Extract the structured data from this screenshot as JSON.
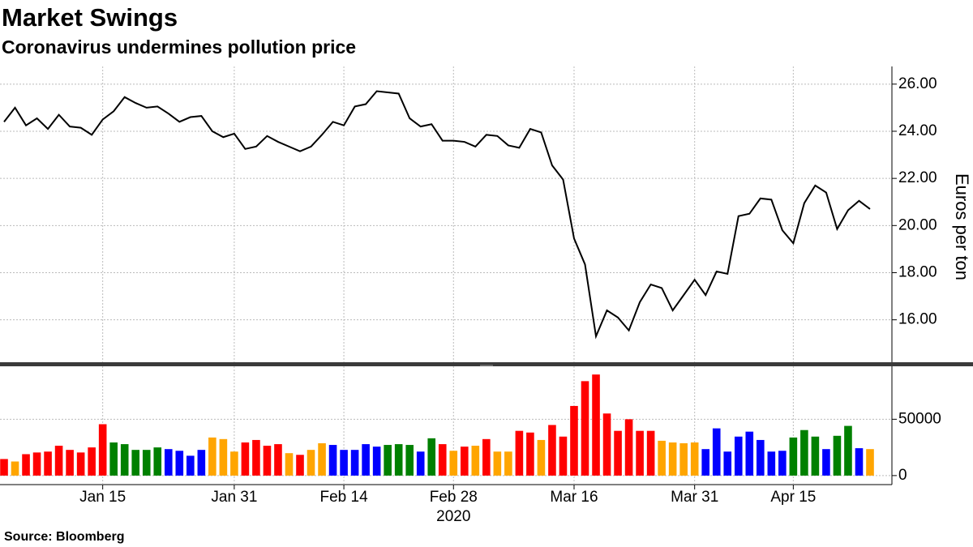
{
  "chart_data": [
    {
      "type": "line",
      "title": "Market Swings",
      "subtitle": "Coronavirus undermines pollution price",
      "ylabel": "Euros per ton",
      "x_year_label": "2020",
      "categories": [
        null,
        null,
        null,
        null,
        null,
        null,
        null,
        null,
        null,
        "Jan 15",
        null,
        null,
        null,
        null,
        null,
        null,
        null,
        null,
        null,
        null,
        null,
        "Jan 31",
        null,
        null,
        null,
        null,
        null,
        null,
        null,
        null,
        null,
        "Feb 14",
        null,
        null,
        null,
        null,
        null,
        null,
        null,
        null,
        null,
        "Feb 28",
        null,
        null,
        null,
        null,
        null,
        null,
        null,
        null,
        null,
        null,
        "Mar 16",
        null,
        null,
        null,
        null,
        null,
        null,
        null,
        null,
        null,
        null,
        "Mar 31",
        null,
        null,
        null,
        null,
        null,
        null,
        null,
        null,
        "Apr 15",
        null,
        null,
        null,
        null,
        null,
        null,
        null
      ],
      "series": [
        {
          "color": "#000000",
          "values": [
            24.4,
            25.0,
            24.25,
            24.55,
            24.1,
            24.7,
            24.2,
            24.15,
            23.85,
            24.5,
            24.85,
            25.45,
            25.2,
            25.0,
            25.05,
            24.75,
            24.4,
            24.6,
            24.65,
            24.0,
            23.75,
            23.9,
            23.25,
            23.35,
            23.8,
            23.55,
            23.35,
            23.15,
            23.35,
            23.85,
            24.4,
            24.25,
            25.05,
            25.15,
            25.7,
            25.65,
            25.6,
            24.55,
            24.2,
            24.3,
            23.6,
            23.6,
            23.55,
            23.35,
            23.85,
            23.8,
            23.4,
            23.3,
            24.1,
            23.95,
            22.55,
            21.95,
            19.45,
            18.35,
            15.3,
            16.4,
            16.1,
            15.55,
            16.75,
            17.5,
            17.35,
            16.4,
            17.05,
            17.7,
            17.05,
            18.05,
            17.95,
            20.4,
            20.5,
            21.15,
            21.1,
            19.8,
            19.25,
            20.95,
            21.7,
            21.4,
            19.85,
            20.65,
            21.05,
            20.7
          ]
        }
      ],
      "ylim": [
        14.2,
        26.75
      ],
      "yticks": [
        {
          "value": 16,
          "label": "16.00"
        },
        {
          "value": 18,
          "label": "18.00"
        },
        {
          "value": 20,
          "label": "20.00"
        },
        {
          "value": 22,
          "label": "22.00"
        },
        {
          "value": 24,
          "label": "24.00"
        },
        {
          "value": 26,
          "label": "26.00"
        }
      ],
      "grid": true
    },
    {
      "type": "bar",
      "values": [
        14700,
        12500,
        19000,
        20500,
        21300,
        26500,
        22800,
        20500,
        25000,
        45600,
        29400,
        27900,
        22800,
        22800,
        25000,
        23500,
        22000,
        17600,
        22800,
        33800,
        32400,
        21300,
        29400,
        31600,
        26500,
        27900,
        19900,
        18400,
        22800,
        28700,
        27200,
        22800,
        22800,
        27900,
        25700,
        27200,
        27900,
        27200,
        21300,
        33100,
        27900,
        22000,
        25700,
        26500,
        32400,
        21300,
        21300,
        39700,
        38200,
        31600,
        44900,
        34600,
        61800,
        83800,
        89700,
        55100,
        39700,
        50000,
        39700,
        39700,
        30900,
        29400,
        28700,
        29400,
        23500,
        41900,
        21300,
        34600,
        39000,
        31600,
        21300,
        22000,
        33800,
        40400,
        34600,
        23500,
        35300,
        44100,
        24300,
        23500
      ],
      "colors": [
        "#ff0000",
        "#ffa500",
        "#ff0000",
        "#ff0000",
        "#ff0000",
        "#ff0000",
        "#ff0000",
        "#ff0000",
        "#ff0000",
        "#ff0000",
        "#008000",
        "#008000",
        "#008000",
        "#008000",
        "#008000",
        "#0000ff",
        "#0000ff",
        "#0000ff",
        "#0000ff",
        "#ffa500",
        "#ffa500",
        "#ffa500",
        "#ff0000",
        "#ff0000",
        "#ff0000",
        "#ff0000",
        "#ffa500",
        "#ff0000",
        "#ffa500",
        "#ffa500",
        "#0000ff",
        "#0000ff",
        "#0000ff",
        "#0000ff",
        "#0000ff",
        "#008000",
        "#008000",
        "#008000",
        "#0000ff",
        "#008000",
        "#ff0000",
        "#ffa500",
        "#ff0000",
        "#ffa500",
        "#ff0000",
        "#ffa500",
        "#ffa500",
        "#ff0000",
        "#ff0000",
        "#ffa500",
        "#ff0000",
        "#ff0000",
        "#ff0000",
        "#ff0000",
        "#ff0000",
        "#ff0000",
        "#ff0000",
        "#ff0000",
        "#ff0000",
        "#ff0000",
        "#ffa500",
        "#ffa500",
        "#ffa500",
        "#ffa500",
        "#0000ff",
        "#0000ff",
        "#0000ff",
        "#0000ff",
        "#0000ff",
        "#0000ff",
        "#0000ff",
        "#0000ff",
        "#008000",
        "#008000",
        "#008000",
        "#0000ff",
        "#008000",
        "#008000",
        "#0000ff",
        "#ffa500"
      ],
      "ylim": [
        -8000,
        97000
      ],
      "yticks": [
        0,
        50000
      ],
      "grid": true
    }
  ],
  "source": "Source: Bloomberg"
}
